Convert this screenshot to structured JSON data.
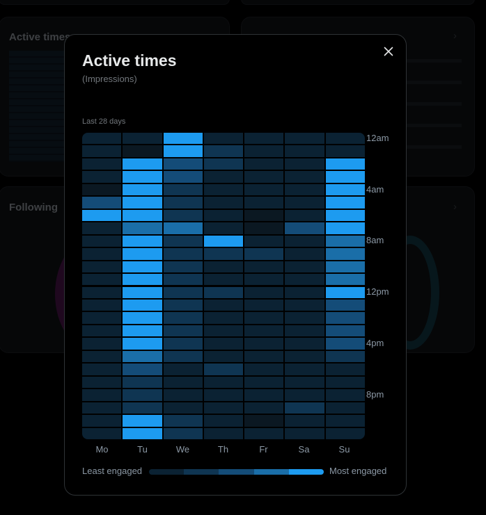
{
  "background": {
    "active_times_title": "Active times",
    "following_title": "Following"
  },
  "modal": {
    "title": "Active times",
    "subtitle": "(Impressions)",
    "period": "Last 28 days",
    "close_icon": "close-icon",
    "day_labels": [
      "Mo",
      "Tu",
      "We",
      "Th",
      "Fr",
      "Sa",
      "Su"
    ],
    "hour_labels": [
      "12am",
      "4am",
      "8am",
      "12pm",
      "4pm",
      "8pm"
    ],
    "legend": {
      "least_label": "Least engaged",
      "most_label": "Most engaged"
    },
    "colors": {
      "scale": [
        "#0b1822",
        "#0b2233",
        "#0f3552",
        "#144c78",
        "#1a6ea8",
        "#1d9bf0"
      ]
    }
  },
  "chart_data": {
    "type": "heatmap",
    "title": "Active times",
    "subtitle": "(Impressions)",
    "columns": [
      "Mo",
      "Tu",
      "We",
      "Th",
      "Fr",
      "Sa",
      "Su"
    ],
    "row_tick_labels": [
      "12am",
      "4am",
      "8am",
      "12pm",
      "4pm",
      "8pm"
    ],
    "rows": 24,
    "scale": "0 = least engaged, 5 = most engaged",
    "values": [
      [
        1,
        1,
        5,
        1,
        1,
        1,
        1
      ],
      [
        1,
        0,
        5,
        2,
        1,
        1,
        1
      ],
      [
        1,
        5,
        3,
        2,
        1,
        1,
        5
      ],
      [
        1,
        5,
        3,
        1,
        1,
        1,
        5
      ],
      [
        0,
        5,
        2,
        1,
        1,
        1,
        5
      ],
      [
        3,
        5,
        2,
        1,
        1,
        1,
        5
      ],
      [
        5,
        5,
        2,
        1,
        0,
        1,
        5
      ],
      [
        1,
        4,
        4,
        1,
        0,
        3,
        5
      ],
      [
        1,
        5,
        2,
        5,
        1,
        1,
        4
      ],
      [
        1,
        5,
        2,
        2,
        2,
        1,
        4
      ],
      [
        1,
        5,
        2,
        1,
        1,
        1,
        4
      ],
      [
        1,
        5,
        2,
        1,
        1,
        1,
        4
      ],
      [
        1,
        5,
        2,
        2,
        1,
        1,
        5
      ],
      [
        1,
        5,
        2,
        1,
        1,
        1,
        3
      ],
      [
        1,
        5,
        2,
        1,
        1,
        1,
        3
      ],
      [
        1,
        5,
        2,
        1,
        1,
        1,
        3
      ],
      [
        1,
        5,
        2,
        1,
        1,
        1,
        3
      ],
      [
        1,
        4,
        2,
        1,
        1,
        1,
        2
      ],
      [
        1,
        3,
        1,
        2,
        1,
        1,
        1
      ],
      [
        1,
        2,
        1,
        1,
        1,
        1,
        1
      ],
      [
        1,
        2,
        1,
        1,
        1,
        1,
        1
      ],
      [
        1,
        2,
        1,
        1,
        1,
        2,
        1
      ],
      [
        1,
        5,
        2,
        1,
        0,
        1,
        1
      ],
      [
        1,
        5,
        2,
        1,
        1,
        1,
        1
      ]
    ],
    "legend": [
      "Least engaged",
      "Most engaged"
    ]
  }
}
